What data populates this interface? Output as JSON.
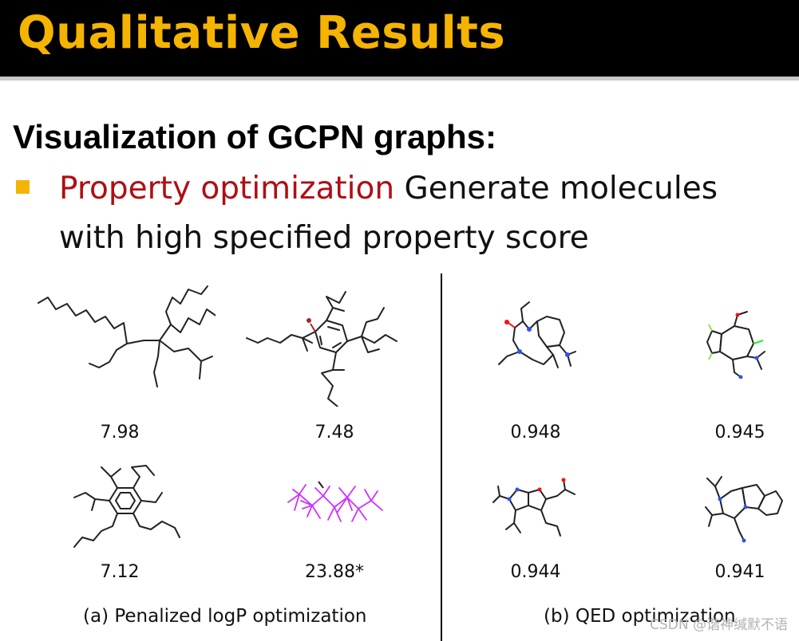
{
  "slide": {
    "title": "Qualitative Results",
    "subtitle": "Visualization of GCPN graphs:",
    "bullet": {
      "highlight": "Property optimization",
      "text_line1": " Generate molecules",
      "text_line2": "with high specified property score"
    }
  },
  "figure": {
    "left_panel": {
      "caption": "(a) Penalized logP optimization",
      "scores": [
        "7.98",
        "7.48",
        "7.12",
        "23.88*"
      ]
    },
    "right_panel": {
      "caption": "(b) QED optimization",
      "scores": [
        "0.948",
        "0.945",
        "0.944",
        "0.941"
      ]
    }
  },
  "watermark": "CSDN @谐神缄默不语",
  "colors": {
    "title_bar": "#000000",
    "title_text": "#f5b400",
    "bullet_square": "#f5b400",
    "highlight_text": "#b00e13",
    "atom_oxygen": "#ff0d0d",
    "atom_nitrogen": "#3050f8",
    "atom_fluorine": "#90e050",
    "atom_chlorine": "#1ff01f",
    "atom_bromine": "#a62929",
    "molecule_iodine": "#cc33ff"
  }
}
